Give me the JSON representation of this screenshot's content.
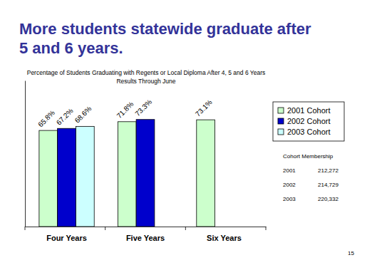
{
  "chart_data": {
    "type": "bar",
    "title": [
      "More students statewide graduate after",
      "5 and 6 years."
    ],
    "subtitle": [
      "Percentage of Students Graduating with Regents or Local Diploma After 4, 5 and 6 Years",
      "Results Through June"
    ],
    "categories": [
      "Four Years",
      "Five Years",
      "Six Years"
    ],
    "series": [
      {
        "name": "2001 Cohort",
        "color": "#ccffcc",
        "values": [
          65.8,
          71.8,
          73.1
        ],
        "value_labels": [
          "65.8%",
          "71.8%",
          "73.1%"
        ]
      },
      {
        "name": "2002 Cohort",
        "color": "#0000cc",
        "values": [
          67.2,
          73.3,
          null
        ],
        "value_labels": [
          "67.2%",
          "73.3%",
          null
        ]
      },
      {
        "name": "2003 Cohort",
        "color": "#ccffff",
        "values": [
          68.6,
          null,
          null
        ],
        "value_labels": [
          "68.6%",
          null,
          null
        ]
      }
    ],
    "ylim": [
      0,
      100
    ],
    "tick_labels": "x",
    "data_labels": true,
    "legend": "right",
    "cohort_membership": {
      "title": "Cohort Membership",
      "rows": [
        [
          "2001",
          "212,272"
        ],
        [
          "2002",
          "214,729"
        ],
        [
          "2003",
          "220,332"
        ]
      ]
    },
    "page_number": "15"
  }
}
